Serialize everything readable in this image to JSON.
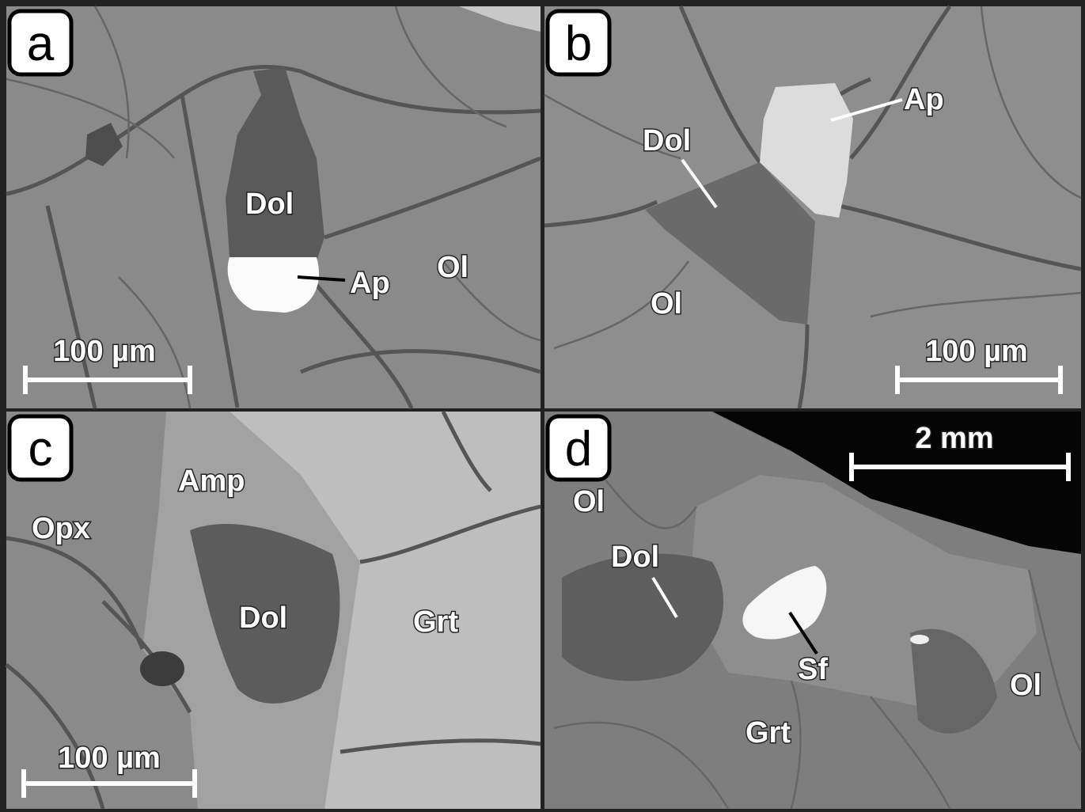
{
  "panels": [
    {
      "letter": "a",
      "labels": [
        "Dol",
        "Ap",
        "Ol"
      ],
      "scale_bar": "100 µm"
    },
    {
      "letter": "b",
      "labels": [
        "Ap",
        "Dol",
        "Ol"
      ],
      "scale_bar": "100 µm"
    },
    {
      "letter": "c",
      "labels": [
        "Amp",
        "Opx",
        "Dol",
        "Grt"
      ],
      "scale_bar": "100 µm"
    },
    {
      "letter": "d",
      "labels": [
        "Ol",
        "Dol",
        "Sf",
        "Ol",
        "Grt"
      ],
      "scale_bar": "2 mm"
    }
  ]
}
